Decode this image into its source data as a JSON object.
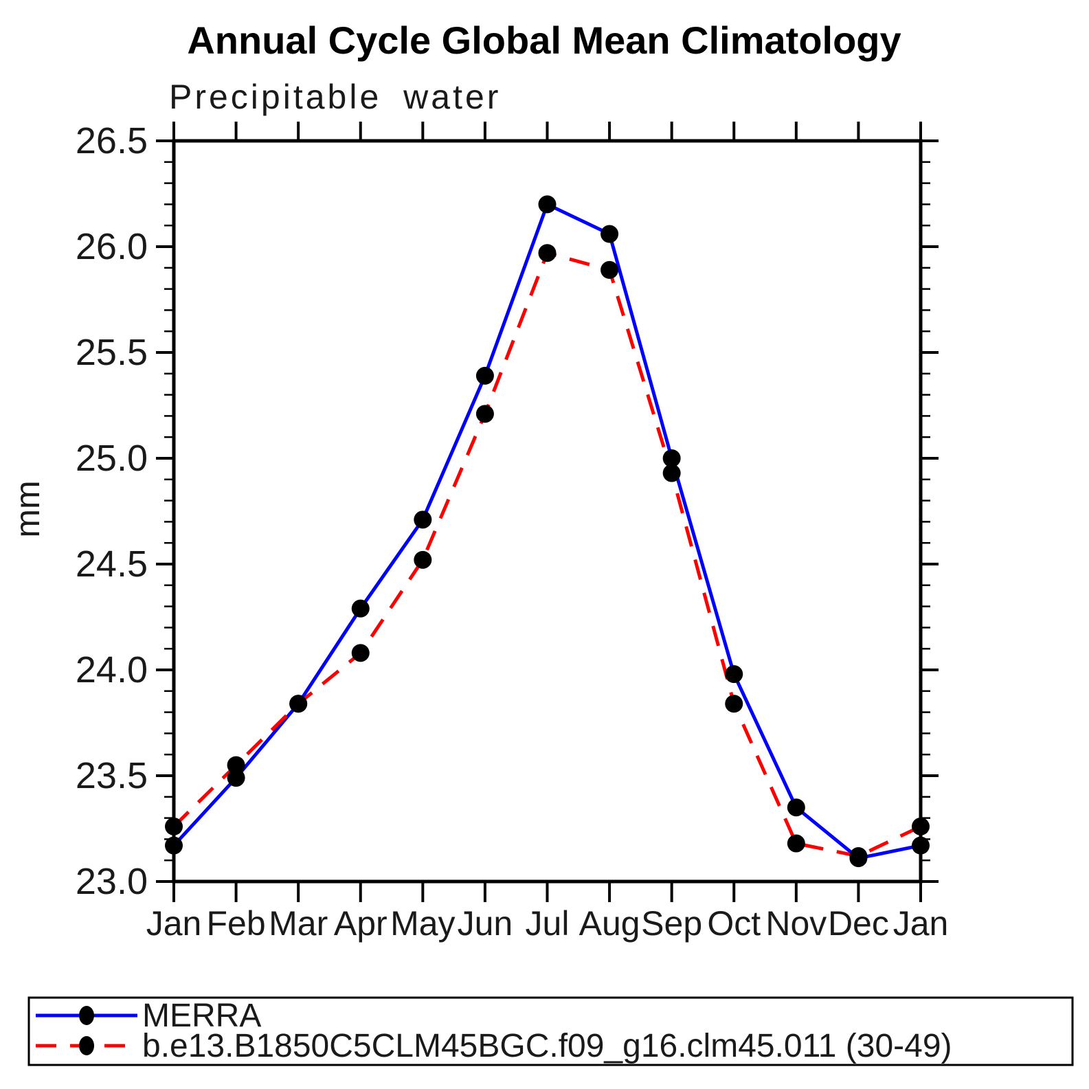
{
  "title": "Annual Cycle Global Mean Climatology",
  "chart_data": {
    "type": "line",
    "title": "Annual Cycle Global Mean Climatology",
    "subtitle": "Precipitable water",
    "ylabel": "mm",
    "xlabel": "",
    "categories": [
      "Jan",
      "Feb",
      "Mar",
      "Apr",
      "May",
      "Jun",
      "Jul",
      "Aug",
      "Sep",
      "Oct",
      "Nov",
      "Dec",
      "Jan"
    ],
    "ylim": [
      23.0,
      26.5
    ],
    "ytick_step": 0.5,
    "yminor_step": 0.1,
    "ytick_labels": [
      "23.0",
      "23.5",
      "24.0",
      "24.5",
      "25.0",
      "25.5",
      "26.0",
      "26.5"
    ],
    "grid": false,
    "legend_position": "bottom",
    "marker_color": "#000000",
    "series": [
      {
        "name": "MERRA",
        "color": "#0000ff",
        "line_style": "solid",
        "marker": "circle",
        "values": [
          23.17,
          23.49,
          23.84,
          24.29,
          24.71,
          25.39,
          26.2,
          26.06,
          25.0,
          23.98,
          23.35,
          23.11,
          23.17
        ]
      },
      {
        "name": "b.e13.B1850C5CLM45BGC.f09_g16.clm45.011 (30-49)",
        "color": "#ff0000",
        "line_style": "dashed",
        "marker": "circle",
        "values": [
          23.26,
          23.55,
          23.84,
          24.08,
          24.52,
          25.21,
          25.97,
          25.89,
          24.93,
          23.84,
          23.18,
          23.12,
          23.26
        ]
      }
    ]
  }
}
